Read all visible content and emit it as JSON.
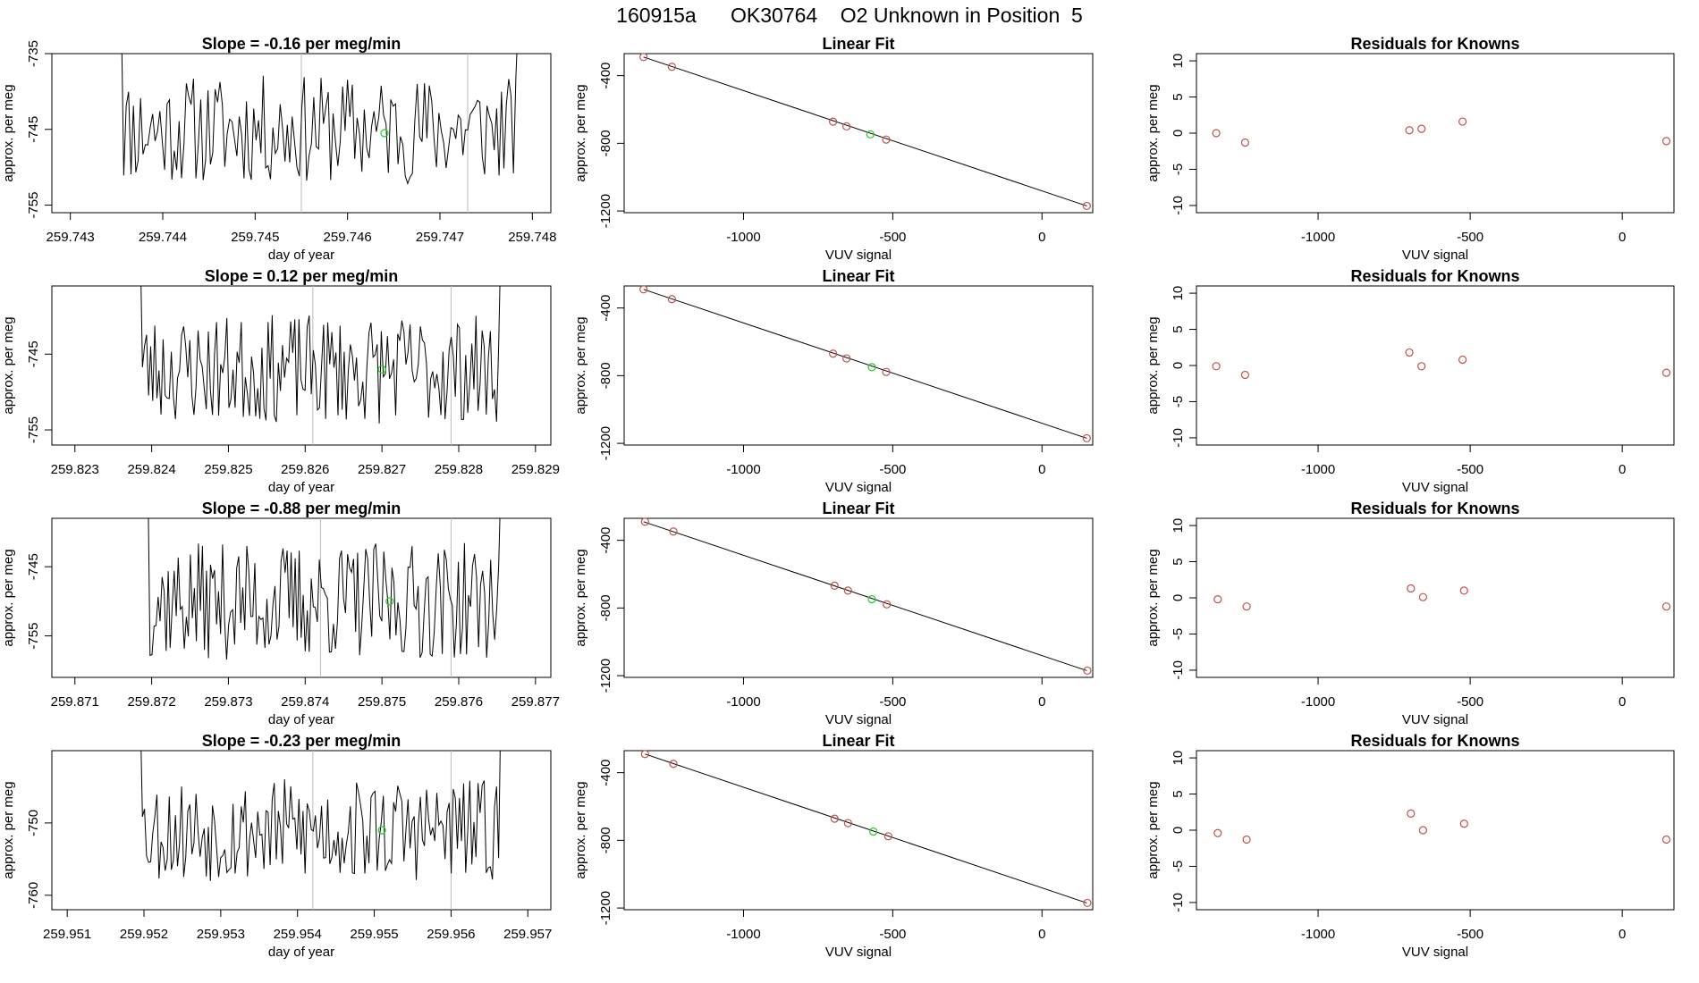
{
  "figure_title": "160915a      OK30764    O2 Unknown in Position  5",
  "colors": {
    "line": "#000000",
    "known": "#c0504d",
    "unknown": "#22cc22",
    "vline": "#bbbbbb"
  },
  "chart_data": [
    {
      "type": "line",
      "title": "Slope =  -0.16  per meg/min",
      "xlabel": "day of year",
      "ylabel": "approx. per meg",
      "xlim": [
        259.7428,
        259.7482
      ],
      "ylim": [
        -756,
        -735
      ],
      "xticks": [
        "259.743",
        "259.744",
        "259.745",
        "259.746",
        "259.747",
        "259.748"
      ],
      "yticks": [
        "-735",
        "-745",
        "-755"
      ],
      "vlines": [
        259.7455,
        259.7473
      ],
      "unknown_point": {
        "x": 259.7464,
        "y": -745.5
      },
      "series": {
        "x_start": 259.7435,
        "x_end": 259.7479,
        "count": 170,
        "mean": -745,
        "amp": 5.5,
        "seed": 11
      }
    },
    {
      "type": "scatter",
      "title": "Linear Fit",
      "xlabel": "VUV signal",
      "ylabel": "approx. per meg",
      "xlim": [
        -1400,
        170
      ],
      "ylim": [
        -1210,
        -270
      ],
      "xticks": [
        "-1000",
        "-500",
        "0"
      ],
      "yticks": [
        "-400",
        "-800",
        "-1200"
      ],
      "fit_line": {
        "x": [
          -1335,
          150
        ],
        "y": [
          -290,
          -1170
        ]
      },
      "knowns": [
        [
          -1335,
          -290
        ],
        [
          -1240,
          -348
        ],
        [
          -700,
          -672
        ],
        [
          -655,
          -700
        ],
        [
          -522,
          -778
        ],
        [
          150,
          -1170
        ]
      ],
      "unknown": [
        [
          -575,
          -747
        ]
      ]
    },
    {
      "type": "scatter",
      "title": "Residuals for Knowns",
      "xlabel": "VUV signal",
      "ylabel": "approx. per meg",
      "xlim": [
        -1400,
        170
      ],
      "ylim": [
        -11,
        11
      ],
      "xticks": [
        "-1000",
        "-500",
        "0"
      ],
      "yticks": [
        "10",
        "5",
        "0",
        "-5",
        "-10"
      ],
      "knowns": [
        [
          -1335,
          0.0
        ],
        [
          -1240,
          -1.3
        ],
        [
          -700,
          0.4
        ],
        [
          -660,
          0.6
        ],
        [
          -525,
          1.6
        ],
        [
          145,
          -1.1
        ]
      ]
    },
    {
      "type": "line",
      "title": "Slope =  0.12  per meg/min",
      "xlabel": "day of year",
      "ylabel": "approx. per meg",
      "xlim": [
        259.8227,
        259.8292
      ],
      "ylim": [
        -757,
        -736
      ],
      "xticks": [
        "259.823",
        "259.824",
        "259.825",
        "259.826",
        "259.827",
        "259.828",
        "259.829"
      ],
      "yticks": [
        "-745",
        "-755"
      ],
      "vlines": [
        259.8261,
        259.8279
      ],
      "unknown_point": {
        "x": 259.827,
        "y": -747
      },
      "series": {
        "x_start": 259.8238,
        "x_end": 259.8286,
        "count": 180,
        "mean": -747,
        "amp": 5.5,
        "seed": 23
      }
    },
    {
      "type": "scatter",
      "title": "Linear Fit",
      "xlabel": "VUV signal",
      "ylabel": "approx. per meg",
      "xlim": [
        -1400,
        170
      ],
      "ylim": [
        -1210,
        -270
      ],
      "xticks": [
        "-1000",
        "-500",
        "0"
      ],
      "yticks": [
        "-400",
        "-800",
        "-1200"
      ],
      "fit_line": {
        "x": [
          -1335,
          150
        ],
        "y": [
          -290,
          -1170
        ]
      },
      "knowns": [
        [
          -1335,
          -290
        ],
        [
          -1240,
          -348
        ],
        [
          -700,
          -670
        ],
        [
          -655,
          -698
        ],
        [
          -522,
          -778
        ],
        [
          150,
          -1170
        ]
      ],
      "unknown": [
        [
          -570,
          -750
        ]
      ]
    },
    {
      "type": "scatter",
      "title": "Residuals for Knowns",
      "xlabel": "VUV signal",
      "ylabel": "approx. per meg",
      "xlim": [
        -1400,
        170
      ],
      "ylim": [
        -11,
        11
      ],
      "xticks": [
        "-1000",
        "-500",
        "0"
      ],
      "yticks": [
        "10",
        "5",
        "0",
        "-5",
        "-10"
      ],
      "knowns": [
        [
          -1335,
          -0.1
        ],
        [
          -1240,
          -1.3
        ],
        [
          -700,
          1.8
        ],
        [
          -660,
          -0.1
        ],
        [
          -525,
          0.8
        ],
        [
          145,
          -1.0
        ]
      ]
    },
    {
      "type": "line",
      "title": "Slope =  -0.88  per meg/min",
      "xlabel": "day of year",
      "ylabel": "approx. per meg",
      "xlim": [
        259.8707,
        259.8772
      ],
      "ylim": [
        -761,
        -738
      ],
      "xticks": [
        "259.871",
        "259.872",
        "259.873",
        "259.874",
        "259.875",
        "259.876",
        "259.877"
      ],
      "yticks": [
        "-745",
        "-755"
      ],
      "vlines": [
        259.8742,
        259.8759
      ],
      "unknown_point": {
        "x": 259.8751,
        "y": -750
      },
      "series": {
        "x_start": 259.8719,
        "x_end": 259.8766,
        "count": 180,
        "mean": -750,
        "amp": 6.5,
        "seed": 37
      }
    },
    {
      "type": "scatter",
      "title": "Linear Fit",
      "xlabel": "VUV signal",
      "ylabel": "approx. per meg",
      "xlim": [
        -1400,
        170
      ],
      "ylim": [
        -1210,
        -270
      ],
      "xticks": [
        "-1000",
        "-500",
        "0"
      ],
      "yticks": [
        "-400",
        "-800",
        "-1200"
      ],
      "fit_line": {
        "x": [
          -1335,
          150
        ],
        "y": [
          -290,
          -1170
        ]
      },
      "knowns": [
        [
          -1330,
          -290
        ],
        [
          -1235,
          -348
        ],
        [
          -695,
          -668
        ],
        [
          -650,
          -697
        ],
        [
          -520,
          -778
        ],
        [
          152,
          -1170
        ]
      ],
      "unknown": [
        [
          -570,
          -748
        ]
      ]
    },
    {
      "type": "scatter",
      "title": "Residuals for Knowns",
      "xlabel": "VUV signal",
      "ylabel": "approx. per meg",
      "xlim": [
        -1400,
        170
      ],
      "ylim": [
        -11,
        11
      ],
      "xticks": [
        "-1000",
        "-500",
        "0"
      ],
      "yticks": [
        "10",
        "5",
        "0",
        "-5",
        "-10"
      ],
      "knowns": [
        [
          -1330,
          -0.2
        ],
        [
          -1235,
          -1.2
        ],
        [
          -695,
          1.3
        ],
        [
          -655,
          0.1
        ],
        [
          -520,
          1.0
        ],
        [
          145,
          -1.2
        ]
      ]
    },
    {
      "type": "line",
      "title": "Slope =  -0.23  per meg/min",
      "xlabel": "day of year",
      "ylabel": "approx. per meg",
      "xlim": [
        259.9508,
        259.9573
      ],
      "ylim": [
        -762,
        -740
      ],
      "xticks": [
        "259.951",
        "259.952",
        "259.953",
        "259.954",
        "259.955",
        "259.956",
        "259.957"
      ],
      "yticks": [
        "-750",
        "-760"
      ],
      "vlines": [
        259.9542,
        259.956
      ],
      "unknown_point": {
        "x": 259.9551,
        "y": -751
      },
      "series": {
        "x_start": 259.9519,
        "x_end": 259.9567,
        "count": 180,
        "mean": -751,
        "amp": 5.5,
        "seed": 53
      }
    },
    {
      "type": "scatter",
      "title": "Linear Fit",
      "xlabel": "VUV signal",
      "ylabel": "approx. per meg",
      "xlim": [
        -1400,
        170
      ],
      "ylim": [
        -1210,
        -270
      ],
      "xticks": [
        "-1000",
        "-500",
        "0"
      ],
      "yticks": [
        "-400",
        "-800",
        "-1200"
      ],
      "fit_line": {
        "x": [
          -1330,
          150
        ],
        "y": [
          -290,
          -1170
        ]
      },
      "knowns": [
        [
          -1330,
          -290
        ],
        [
          -1235,
          -348
        ],
        [
          -695,
          -672
        ],
        [
          -650,
          -698
        ],
        [
          -515,
          -776
        ],
        [
          152,
          -1170
        ]
      ],
      "unknown": [
        [
          -565,
          -748
        ]
      ]
    },
    {
      "type": "scatter",
      "title": "Residuals for Knowns",
      "xlabel": "VUV signal",
      "ylabel": "approx. per meg",
      "xlim": [
        -1400,
        170
      ],
      "ylim": [
        -11,
        11
      ],
      "xticks": [
        "-1000",
        "-500",
        "0"
      ],
      "yticks": [
        "10",
        "5",
        "0",
        "-5",
        "-10"
      ],
      "knowns": [
        [
          -1330,
          -0.4
        ],
        [
          -1235,
          -1.3
        ],
        [
          -695,
          2.3
        ],
        [
          -655,
          0.0
        ],
        [
          -520,
          0.9
        ],
        [
          145,
          -1.3
        ]
      ]
    }
  ]
}
